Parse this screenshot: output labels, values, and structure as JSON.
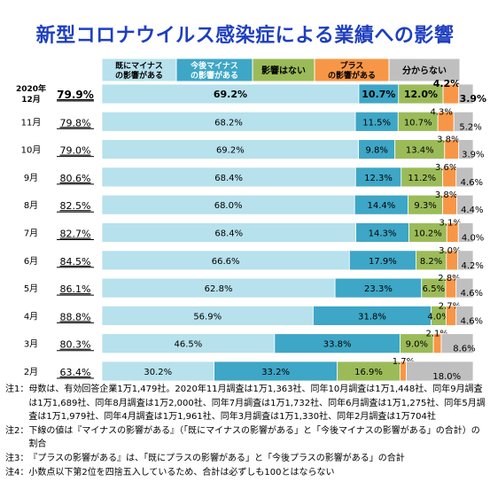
{
  "title": "新型コロナウイルス感染症による業績への影響",
  "chart_data": {
    "type": "bar",
    "stacked": true,
    "orientation": "horizontal",
    "xlim": [
      0,
      100
    ],
    "categories": [
      "2020年 12月",
      "11月",
      "10月",
      "9月",
      "8月",
      "7月",
      "6月",
      "5月",
      "4月",
      "3月",
      "2月"
    ],
    "negative_totals": [
      "79.9%",
      "79.8%",
      "79.0%",
      "80.6%",
      "82.5%",
      "82.7%",
      "84.5%",
      "86.1%",
      "88.8%",
      "80.3%",
      "63.4%"
    ],
    "series": [
      {
        "name": "既にマイナスの影響がある",
        "color": "#b7e1ec",
        "values": [
          69.2,
          68.2,
          69.2,
          68.4,
          68.0,
          68.4,
          66.6,
          62.8,
          56.9,
          46.5,
          30.2
        ],
        "labels": [
          "69.2%",
          "68.2%",
          "69.2%",
          "68.4%",
          "68.0%",
          "68.4%",
          "66.6%",
          "62.8%",
          "56.9%",
          "46.5%",
          "30.2%"
        ]
      },
      {
        "name": "今後マイナスの影響がある",
        "color": "#3ea6c6",
        "values": [
          10.7,
          11.5,
          9.8,
          12.3,
          14.4,
          14.3,
          17.9,
          23.3,
          31.8,
          33.8,
          33.2
        ],
        "labels": [
          "10.7%",
          "11.5%",
          "9.8%",
          "12.3%",
          "14.4%",
          "14.3%",
          "17.9%",
          "23.3%",
          "31.8%",
          "33.8%",
          "33.2%"
        ]
      },
      {
        "name": "影響はない",
        "color": "#9bbb59",
        "values": [
          12.0,
          10.7,
          13.4,
          11.2,
          9.3,
          10.2,
          8.2,
          6.5,
          4.0,
          9.0,
          16.9
        ],
        "labels": [
          "12.0%",
          "10.7%",
          "13.4%",
          "11.2%",
          "9.3%",
          "10.2%",
          "8.2%",
          "6.5%",
          "4.0%",
          "9.0%",
          "16.9%"
        ]
      },
      {
        "name": "プラスの影響がある",
        "color": "#f79646",
        "values": [
          4.2,
          4.3,
          3.8,
          3.6,
          3.8,
          3.1,
          3.0,
          2.8,
          2.7,
          2.1,
          1.7
        ],
        "labels": [
          "4.2%",
          "4.3%",
          "3.8%",
          "3.6%",
          "3.8%",
          "3.1%",
          "3.0%",
          "2.8%",
          "2.7%",
          "2.1%",
          "1.7%"
        ]
      },
      {
        "name": "分からない",
        "color": "#bfbfbf",
        "values": [
          3.9,
          5.2,
          3.9,
          4.6,
          4.4,
          4.0,
          4.2,
          4.6,
          4.6,
          8.6,
          18.0
        ],
        "labels": [
          "3.9%",
          "5.2%",
          "3.9%",
          "4.6%",
          "4.4%",
          "4.0%",
          "4.2%",
          "4.6%",
          "4.6%",
          "8.6%",
          "18.0%"
        ]
      }
    ],
    "legend_position": "top",
    "grid": false
  },
  "notes": [
    {
      "label": "注1：",
      "text": "母数は、有効回答企業1万1,479社。2020年11月調査は1万1,363社、同年10月調査は1万1,448社、同年9月調査は1万1,689社、同年8月調査は1万2,000社、同年7月調査は1万1,732社、同年6月調査は1万1,275社、同年5月調査は1万1,979社、同年4月調査は1万1,961社、同年3月調査は1万1,330社、同年2月調査は1万704社"
    },
    {
      "label": "注2：",
      "text": "下線の値は『マイナスの影響がある』（「既にマイナスの影響がある」と「今後マイナスの影響がある」の合計）の割合"
    },
    {
      "label": "注3：",
      "text": "『プラスの影響がある』は、「既にプラスの影響がある」と「今後プラスの影響がある」の合計"
    },
    {
      "label": "注4：",
      "text": "小数点以下第2位を四捨五入しているため、合計は必ずしも100とはならない"
    }
  ]
}
